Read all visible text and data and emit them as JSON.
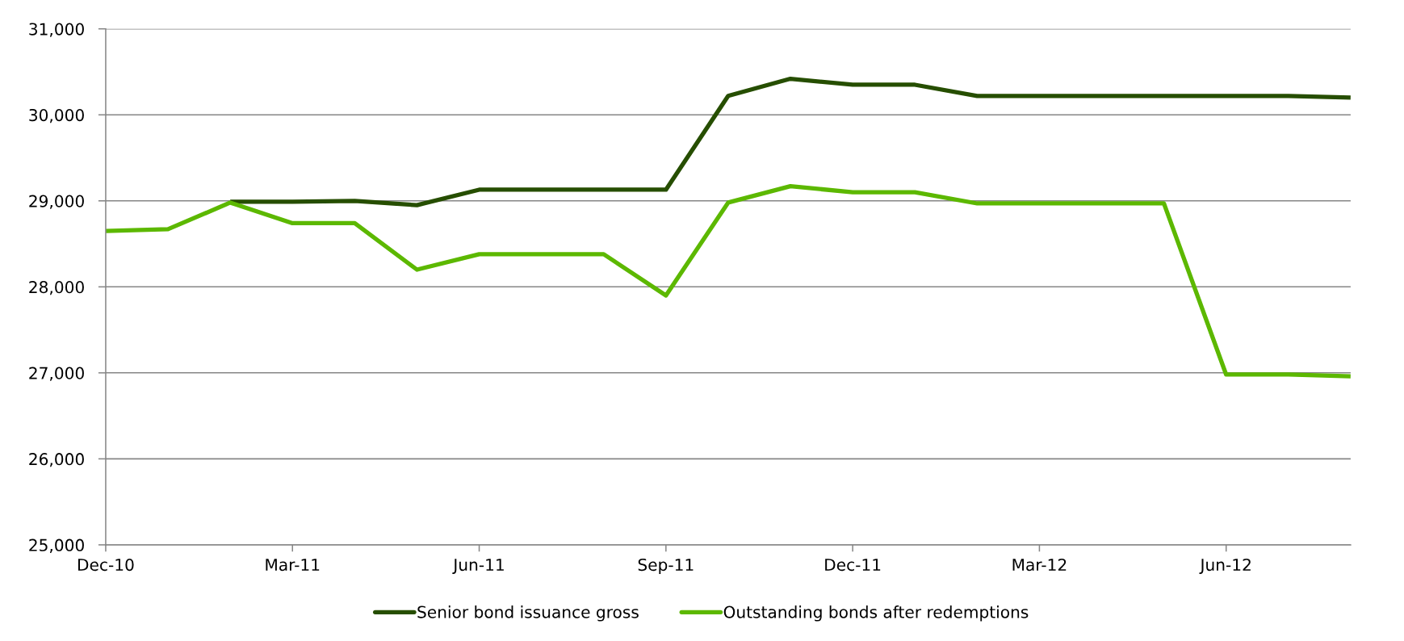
{
  "chart_data": {
    "type": "line",
    "categories": [
      "Dec-10",
      null,
      null,
      "Mar-11",
      null,
      null,
      "Jun-11",
      null,
      null,
      "Sep-11",
      null,
      null,
      "Dec-11",
      null,
      null,
      "Mar-12",
      null,
      null,
      "Jun-12",
      null,
      null
    ],
    "series": [
      {
        "name": "Senior bond issuance gross",
        "color": "#264e00",
        "values": [
          null,
          null,
          28990,
          28990,
          29000,
          28950,
          29130,
          29130,
          29130,
          29130,
          30220,
          30420,
          30350,
          30350,
          30220,
          30220,
          30220,
          30220,
          30220,
          30220,
          30200
        ]
      },
      {
        "name": "Outstanding bonds after redemptions",
        "color": "#5cb800",
        "values": [
          28650,
          28670,
          28980,
          28740,
          28740,
          28200,
          28380,
          28380,
          28380,
          27900,
          28980,
          29170,
          29100,
          29100,
          28970,
          28970,
          28970,
          28970,
          26980,
          26980,
          26960
        ]
      }
    ],
    "ylim": [
      25000,
      31000
    ],
    "yticks": [
      {
        "value": 25000,
        "label": "25,000"
      },
      {
        "value": 26000,
        "label": "26,000"
      },
      {
        "value": 27000,
        "label": "27,000"
      },
      {
        "value": 28000,
        "label": "28,000"
      },
      {
        "value": 29000,
        "label": "29,000"
      },
      {
        "value": 30000,
        "label": "30,000"
      },
      {
        "value": 31000,
        "label": "31,000"
      }
    ],
    "grid": "y",
    "legend": "bottom",
    "marker": "none",
    "line_style": "solid"
  }
}
